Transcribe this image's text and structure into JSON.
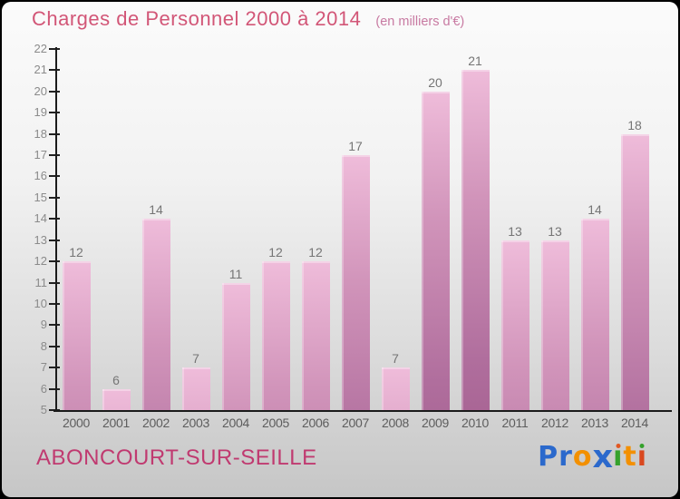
{
  "header": {
    "title": "Charges de Personnel 2000 à 2014",
    "subtitle": "(en milliers d'€)"
  },
  "footer": {
    "location": "ABONCOURT-SUR-SEILLE"
  },
  "logo": {
    "text": "Proxiti",
    "letters": [
      {
        "ch": "P",
        "color": "#2b69cc"
      },
      {
        "ch": "r",
        "color": "#2b69cc"
      },
      {
        "ch": "o",
        "color": "#f39000"
      },
      {
        "ch": "x",
        "color": "#2b69cc",
        "big": true
      },
      {
        "ch": "i",
        "stem": "#35a12c",
        "dot": "#e25822"
      },
      {
        "ch": "t",
        "color": "#f39000"
      },
      {
        "ch": "i",
        "stem": "#d9481f",
        "dot": "#35a12c"
      }
    ]
  },
  "chart_data": {
    "type": "bar",
    "title": "Charges de Personnel 2000 à 2014",
    "subtitle": "(en milliers d'€)",
    "categories": [
      "2000",
      "2001",
      "2002",
      "2003",
      "2004",
      "2005",
      "2006",
      "2007",
      "2008",
      "2009",
      "2010",
      "2011",
      "2012",
      "2013",
      "2014"
    ],
    "values": [
      12,
      6,
      14,
      7,
      11,
      12,
      12,
      17,
      7,
      20,
      21,
      13,
      13,
      14,
      18
    ],
    "xlabel": "",
    "ylabel": "",
    "ylim": [
      5,
      22
    ],
    "ytick_step": 1,
    "grid": false,
    "legend": false,
    "value_labels": true,
    "colors": {
      "bar_top": "#efbcda",
      "bar_bottom": "#a35e8e",
      "axis": "#1b1b1b",
      "tick_label": "#8b8b8b",
      "value_label": "#757575",
      "title": "#d25677",
      "subtitle": "#c87aa2",
      "location_text": "#c03a70",
      "background_top": "#fbfbfb",
      "background_bottom": "#c6c6c6"
    }
  }
}
